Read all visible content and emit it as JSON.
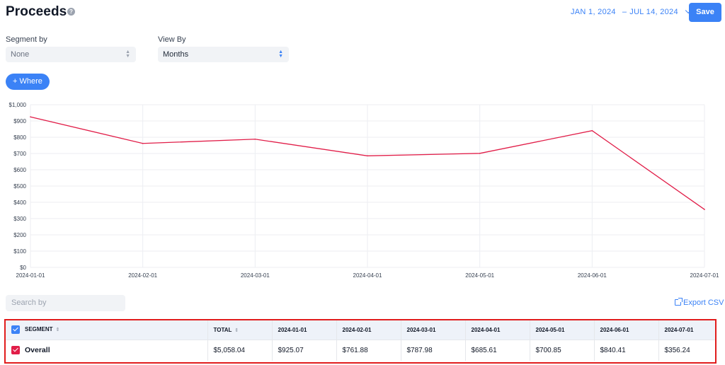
{
  "header": {
    "title": "Proceeds",
    "date_start": "JAN 1, 2024",
    "date_separator": "–",
    "date_end": "JUL 14, 2024",
    "save_label": "Save"
  },
  "controls": {
    "segment_by_label": "Segment by",
    "segment_by_value": "None",
    "view_by_label": "View By",
    "view_by_value": "Months",
    "where_label": "+ Where"
  },
  "search": {
    "placeholder": "Search by"
  },
  "export_label": "Export CSV",
  "colors": {
    "accent": "#3b82f6",
    "series": "#e11d48",
    "highlight_border": "#e11d1d"
  },
  "chart_data": {
    "type": "line",
    "x": [
      "2024-01-01",
      "2024-02-01",
      "2024-03-01",
      "2024-04-01",
      "2024-05-01",
      "2024-06-01",
      "2024-07-01"
    ],
    "series": [
      {
        "values": [
          925.07,
          761.88,
          787.98,
          685.61,
          700.85,
          840.41,
          356.24
        ]
      }
    ],
    "ylim": [
      0,
      1000
    ],
    "yticks": [
      "$0",
      "$100",
      "$200",
      "$300",
      "$400",
      "$500",
      "$600",
      "$700",
      "$800",
      "$900",
      "$1,000"
    ],
    "ytick_values": [
      0,
      100,
      200,
      300,
      400,
      500,
      600,
      700,
      800,
      900,
      1000
    ],
    "grid": true
  },
  "table": {
    "headers": [
      "SEGMENT",
      "TOTAL",
      "2024-01-01",
      "2024-02-01",
      "2024-03-01",
      "2024-04-01",
      "2024-05-01",
      "2024-06-01",
      "2024-07-01"
    ],
    "rows": [
      [
        "Overall",
        "$5,058.04",
        "$925.07",
        "$761.88",
        "$787.98",
        "$685.61",
        "$700.85",
        "$840.41",
        "$356.24"
      ]
    ]
  }
}
